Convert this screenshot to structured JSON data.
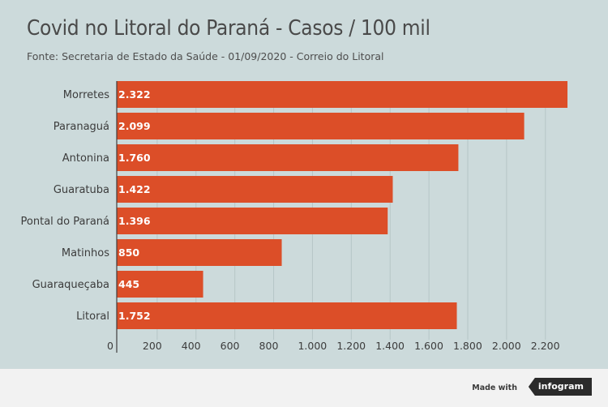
{
  "title": "Covid no Litoral do Paraná - Casos / 100 mil",
  "subtitle": "Fonte: Secretaria de Estado da Saúde - 01/09/2020 - Correio do Litoral",
  "footer": {
    "made_with": "Made with",
    "brand": "infogram"
  },
  "colors": {
    "bar": "#dc4e28",
    "background": "#ccdadb",
    "grid": "#b6c6c7",
    "footer": "#f2f2f2"
  },
  "chart_data": {
    "type": "bar",
    "orientation": "horizontal",
    "categories": [
      "Morretes",
      "Paranaguá",
      "Antonina",
      "Guaratuba",
      "Pontal do Paraná",
      "Matinhos",
      "Guaraqueçaba",
      "Litoral"
    ],
    "values": [
      2322,
      2099,
      1760,
      1422,
      1396,
      850,
      445,
      1752
    ],
    "value_labels": [
      "2.322",
      "2.099",
      "1.760",
      "1.422",
      "1.396",
      "850",
      "445",
      "1.752"
    ],
    "xticks": [
      0,
      200,
      400,
      600,
      800,
      1000,
      1200,
      1400,
      1600,
      1800,
      2000,
      2200
    ],
    "xtick_labels": [
      "0",
      "200",
      "400",
      "600",
      "800",
      "1.000",
      "1.200",
      "1.400",
      "1.600",
      "1.800",
      "2.000",
      "2.200"
    ],
    "xlim": [
      0,
      2322
    ],
    "grid": true,
    "legend": "none"
  }
}
